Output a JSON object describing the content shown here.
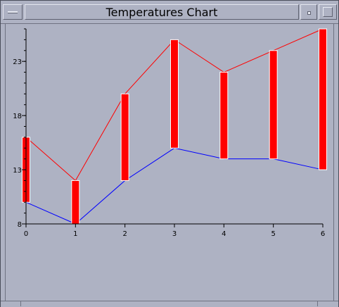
{
  "window": {
    "title": "Temperatures Chart",
    "menu_icon": "window-menu-icon",
    "minimize_icon": "minimize-icon",
    "maximize_icon": "maximize-icon"
  },
  "colors": {
    "background": "#aeb2c3",
    "high_line": "#ff0000",
    "low_line": "#0000ff",
    "range_bar": "#ff0000",
    "axis": "#000000"
  },
  "chart_data": {
    "type": "line",
    "title": "",
    "xlabel": "",
    "ylabel": "",
    "x": [
      0,
      1,
      2,
      3,
      4,
      5,
      6
    ],
    "xlim": [
      0,
      6
    ],
    "ylim": [
      8,
      26
    ],
    "x_ticks": [
      "0",
      "1",
      "2",
      "3",
      "4",
      "5",
      "6"
    ],
    "y_ticks": [
      "8",
      "13",
      "18",
      "23"
    ],
    "y_tick_values": [
      8,
      13,
      18,
      23
    ],
    "series": [
      {
        "values": [
          16,
          12,
          20,
          25,
          22,
          24,
          26
        ],
        "color": "#ff0000"
      },
      {
        "values": [
          10,
          8,
          12,
          15,
          14,
          14,
          13
        ],
        "color": "#0000ff"
      }
    ],
    "range_bars": {
      "low": [
        10,
        8,
        12,
        15,
        14,
        14,
        13
      ],
      "high": [
        16,
        12,
        20,
        25,
        22,
        24,
        26
      ],
      "color": "#ff0000"
    },
    "grid": false,
    "legend": "none"
  }
}
